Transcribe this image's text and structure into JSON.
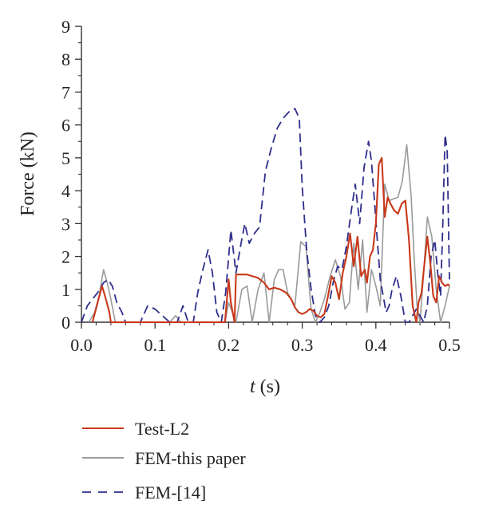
{
  "chart_data": {
    "type": "line",
    "title": "",
    "xlabel_italic": "t",
    "xlabel_rest": " (s)",
    "ylabel": "Force (kN)",
    "xlim": [
      0,
      0.5
    ],
    "ylim": [
      0,
      9
    ],
    "x_ticks": [
      "0.0",
      "0.1",
      "0.2",
      "0.3",
      "0.4",
      "0.5"
    ],
    "y_ticks": [
      "0",
      "1",
      "2",
      "3",
      "4",
      "5",
      "6",
      "7",
      "8",
      "9"
    ],
    "legend_position": "bottom",
    "series": [
      {
        "name": "Test-L2",
        "color": "#c8381a",
        "style": "solid",
        "x": [
          0.015,
          0.022,
          0.028,
          0.032,
          0.038,
          0.04,
          0.045,
          0.195,
          0.2,
          0.203,
          0.208,
          0.21,
          0.218,
          0.225,
          0.232,
          0.24,
          0.248,
          0.255,
          0.262,
          0.27,
          0.278,
          0.285,
          0.29,
          0.295,
          0.3,
          0.305,
          0.31,
          0.315,
          0.32,
          0.325,
          0.33,
          0.335,
          0.34,
          0.345,
          0.35,
          0.355,
          0.36,
          0.365,
          0.37,
          0.375,
          0.38,
          0.385,
          0.388,
          0.392,
          0.396,
          0.4,
          0.404,
          0.408,
          0.412,
          0.416,
          0.42,
          0.425,
          0.43,
          0.435,
          0.44,
          0.445,
          0.45,
          0.455,
          0.458,
          0.462,
          0.466,
          0.47,
          0.474,
          0.478,
          0.482,
          0.486,
          0.49,
          0.494,
          0.498,
          0.5
        ],
        "y": [
          0,
          0.6,
          1.1,
          0.8,
          0.3,
          0,
          0,
          0,
          1.3,
          0.6,
          0,
          1.45,
          1.45,
          1.45,
          1.4,
          1.35,
          1.2,
          1.0,
          1.05,
          1.0,
          0.9,
          0.7,
          0.45,
          0.3,
          0.25,
          0.3,
          0.4,
          0.35,
          0.2,
          0.15,
          0.25,
          0.8,
          1.4,
          1.2,
          0.7,
          1.5,
          2.0,
          2.7,
          1.7,
          2.6,
          1.4,
          1.6,
          1.2,
          2.0,
          2.2,
          3.0,
          4.8,
          5.0,
          3.2,
          3.8,
          3.6,
          3.4,
          3.3,
          3.6,
          3.7,
          2.5,
          0.5,
          0,
          0.6,
          0.9,
          1.8,
          2.6,
          1.8,
          0.8,
          0.6,
          1.4,
          1.2,
          1.1,
          1.15,
          1.1
        ]
      },
      {
        "name": "FEM-this paper",
        "color": "#9a9a9a",
        "style": "solid",
        "x": [
          0.01,
          0.018,
          0.024,
          0.03,
          0.035,
          0.04,
          0.046,
          0.055,
          0.12,
          0.128,
          0.135,
          0.195,
          0.2,
          0.21,
          0.218,
          0.225,
          0.232,
          0.24,
          0.248,
          0.255,
          0.262,
          0.268,
          0.274,
          0.28,
          0.285,
          0.29,
          0.298,
          0.305,
          0.312,
          0.318,
          0.324,
          0.33,
          0.338,
          0.345,
          0.352,
          0.358,
          0.364,
          0.37,
          0.376,
          0.382,
          0.388,
          0.394,
          0.4,
          0.406,
          0.412,
          0.418,
          0.424,
          0.43,
          0.436,
          0.442,
          0.448,
          0.452,
          0.456,
          0.46,
          0.465,
          0.47,
          0.476,
          0.482,
          0.488,
          0.494,
          0.5
        ],
        "y": [
          0,
          0.3,
          0.8,
          1.6,
          1.2,
          0.7,
          0,
          0,
          0,
          0.2,
          0,
          0,
          0.6,
          0,
          1.0,
          1.1,
          0,
          1.0,
          1.5,
          0,
          1.3,
          1.6,
          1.6,
          0.9,
          0.7,
          0.5,
          2.45,
          2.3,
          0.4,
          0,
          0.3,
          0.7,
          1.4,
          1.9,
          1.4,
          0.4,
          0.6,
          2.4,
          1.0,
          2.5,
          0.3,
          1.6,
          1.1,
          0.5,
          4.2,
          3.7,
          3.75,
          3.8,
          4.3,
          5.4,
          3.8,
          2.0,
          0.5,
          0,
          1.5,
          3.2,
          2.6,
          1.0,
          0,
          0.5,
          1.1
        ]
      },
      {
        "name": "FEM-[14]",
        "color": "#2e2e8c",
        "style": "dashed",
        "x": [
          0.0,
          0.008,
          0.015,
          0.022,
          0.03,
          0.036,
          0.042,
          0.048,
          0.055,
          0.06,
          0.07,
          0.08,
          0.09,
          0.1,
          0.11,
          0.12,
          0.13,
          0.138,
          0.145,
          0.152,
          0.158,
          0.165,
          0.172,
          0.178,
          0.184,
          0.19,
          0.196,
          0.203,
          0.21,
          0.216,
          0.222,
          0.228,
          0.235,
          0.242,
          0.25,
          0.258,
          0.266,
          0.274,
          0.282,
          0.29,
          0.296,
          0.3,
          0.306,
          0.312,
          0.318,
          0.324,
          0.33,
          0.336,
          0.342,
          0.348,
          0.354,
          0.36,
          0.366,
          0.372,
          0.378,
          0.384,
          0.39,
          0.394,
          0.398,
          0.402,
          0.406,
          0.41,
          0.414,
          0.418,
          0.422,
          0.428,
          0.434,
          0.44,
          0.445,
          0.45,
          0.455,
          0.46,
          0.465,
          0.47,
          0.475,
          0.48,
          0.484,
          0.488,
          0.491,
          0.494,
          0.497,
          0.5
        ],
        "y": [
          0,
          0.5,
          0.7,
          0.9,
          1.2,
          1.3,
          1.1,
          0.6,
          0.3,
          0,
          0,
          0,
          0.5,
          0.4,
          0.2,
          0,
          0,
          0.5,
          0,
          0,
          0.9,
          1.6,
          2.2,
          1.5,
          0.3,
          0,
          0.9,
          2.8,
          1.5,
          2.3,
          3.0,
          2.4,
          2.7,
          2.9,
          4.6,
          5.3,
          5.9,
          6.2,
          6.4,
          6.5,
          6.2,
          4.1,
          2.2,
          1.0,
          0.2,
          0,
          0.15,
          0.5,
          1.2,
          1.7,
          1.6,
          2.3,
          3.3,
          4.2,
          3.0,
          4.7,
          5.5,
          4.9,
          3.7,
          2.5,
          1.3,
          0.8,
          0.3,
          0.5,
          1.0,
          1.4,
          0.8,
          0,
          0,
          0.2,
          0.4,
          0.2,
          0,
          0.5,
          2.0,
          2.5,
          1.5,
          0.8,
          3.0,
          5.7,
          5.2,
          1.3
        ]
      }
    ]
  }
}
